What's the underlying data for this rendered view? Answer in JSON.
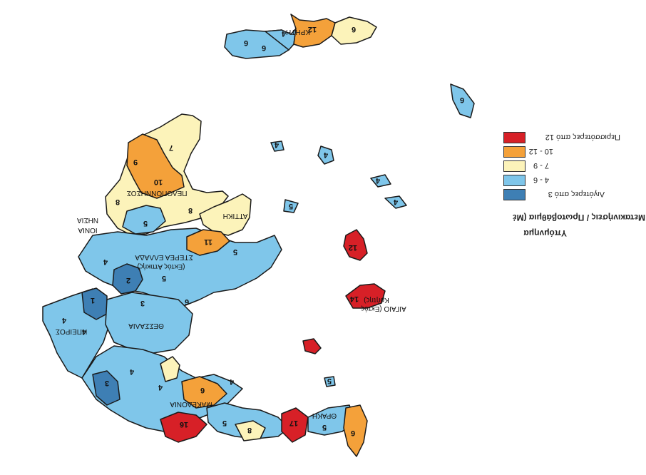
{
  "legend": {
    "title": "Υπόμνημα",
    "subtitle": "Μετακινήσεις / Πρωτοβάθμια (Μέ",
    "items": [
      {
        "label": "Περισσότερες από 12",
        "color": "#d72027"
      },
      {
        "label": "10 - 12",
        "color": "#f4a13a"
      },
      {
        "label": "7 - 9",
        "color": "#fcf3ba"
      },
      {
        "label": "4 - 6",
        "color": "#7fc6ea"
      },
      {
        "label": "Λιγότερες από 3",
        "color": "#3e7fb4"
      }
    ]
  },
  "regions": {
    "kriti": "ΚΡΗΤΗ",
    "peloponnisos": "ΠΕΛΟΠΟΝΝΗΣΟΣ",
    "attiki": "ΑΤΤΙΚΗ",
    "ionia_nisia_1": "ΙΟΝΙΑ",
    "ionia_nisia_2": "ΝΗΣΙΑ",
    "sterea_1": "ΣΤΕΡΕΑ ΕΛΛΑΔΑ",
    "sterea_2": "(Εκτός Αττικής)",
    "ipeiros": "ΗΠΕΙΡΟΣ",
    "thessalia": "ΘΕΣΣΑΛΙΑ",
    "makedonia": "ΜΑΚΕΔΟΝΙΑ",
    "thraki": "ΘΡΑΚΗ",
    "aigaio_1": "ΑΙΓΑΙΟ (Εκτός",
    "aigaio_2": "Κρήτης)"
  },
  "values": {
    "v1": "6",
    "v2": "4",
    "v3": "12",
    "v4": "6",
    "v5": "9",
    "v6": "10",
    "v7": "7",
    "v8": "8",
    "v9": "5",
    "v10": "8",
    "v11": "11",
    "v12": "5",
    "v13": "4",
    "v14": "2",
    "v15": "5",
    "v16": "1",
    "v17": "3",
    "v18": "6",
    "v19": "4",
    "v20": "4",
    "v21": "3",
    "v22": "4",
    "v23": "4",
    "v24": "6",
    "v25": "16",
    "v26": "5",
    "v27": "8",
    "v28": "17",
    "v29": "5",
    "v30": "6",
    "v31": "12",
    "v32": "14",
    "v33": "6",
    "v34": "4",
    "v35": "4",
    "v36": "5",
    "v37": "4",
    "v38": "4",
    "v39": "5",
    "v40": "4",
    "v41": "6"
  }
}
